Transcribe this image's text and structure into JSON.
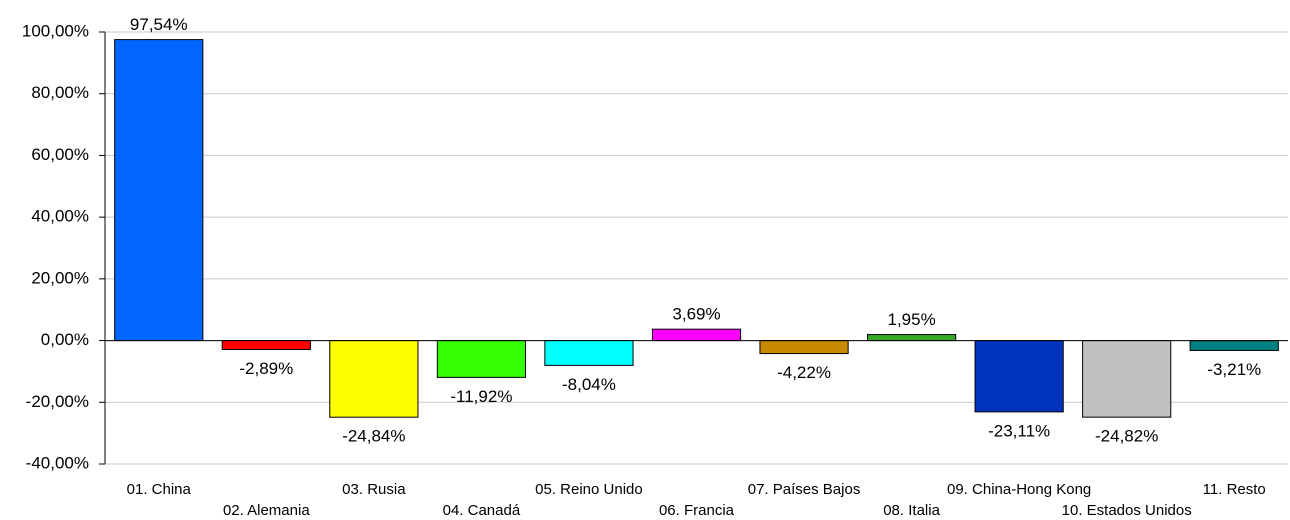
{
  "chart_data": {
    "type": "bar",
    "categories": [
      "01. China",
      "02. Alemania",
      "03. Rusia",
      "04. Canadá",
      "05. Reino Unido",
      "06. Francia",
      "07. Países Bajos",
      "08. Italia",
      "09. China-Hong Kong",
      "10. Estados Unidos",
      "11. Resto"
    ],
    "values": [
      97.54,
      -2.89,
      -24.84,
      -11.92,
      -8.04,
      3.69,
      -4.22,
      1.95,
      -23.11,
      -24.82,
      -3.21
    ],
    "value_labels": [
      "97,54%",
      "-2,89%",
      "-24,84%",
      "-11,92%",
      "-8,04%",
      "3,69%",
      "-4,22%",
      "1,95%",
      "-23,11%",
      "-24,82%",
      "-3,21%"
    ],
    "colors": [
      "#0066ff",
      "#ff0000",
      "#ffff00",
      "#33ff00",
      "#00ffff",
      "#ff00ff",
      "#c88a00",
      "#33aa22",
      "#0033bb",
      "#c0c0c0",
      "#008080"
    ],
    "ylim": [
      -40,
      100
    ],
    "yticks": [
      {
        "value": -40,
        "label": "-40,00%"
      },
      {
        "value": -20,
        "label": "-20,00%"
      },
      {
        "value": 0,
        "label": "0,00%"
      },
      {
        "value": 20,
        "label": "20,00%"
      },
      {
        "value": 40,
        "label": "40,00%"
      },
      {
        "value": 60,
        "label": "60,00%"
      },
      {
        "value": 80,
        "label": "80,00%"
      },
      {
        "value": 100,
        "label": "100,00%"
      }
    ],
    "grid": true
  }
}
